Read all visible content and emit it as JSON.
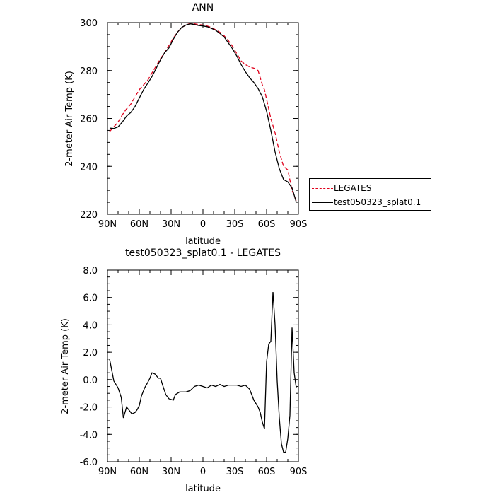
{
  "chart_data": [
    {
      "type": "line",
      "title": "ANN",
      "xlabel": "latitude",
      "ylabel": "2-meter Air Temp (K)",
      "x_ticks": [
        "90N",
        "60N",
        "30N",
        "0",
        "30S",
        "60S",
        "90S"
      ],
      "y_ticks": [
        "220",
        "240",
        "260",
        "280",
        "300"
      ],
      "xlim": [
        -90,
        90
      ],
      "ylim": [
        220,
        300
      ],
      "legend_position": "right",
      "series": [
        {
          "name": "LEGATES",
          "color": "#e0001b",
          "dash": "dashed",
          "x": [
            -88,
            -84,
            -80,
            -76,
            -72,
            -68,
            -64,
            -60,
            -56,
            -52,
            -48,
            -44,
            -40,
            -36,
            -32,
            -28,
            -24,
            -20,
            -16,
            -12,
            -8,
            -4,
            0,
            4,
            8,
            12,
            16,
            20,
            24,
            28,
            32,
            36,
            40,
            44,
            48,
            52,
            56,
            58,
            60,
            64,
            68,
            72,
            76,
            80,
            84,
            88
          ],
          "y": [
            254.5,
            256.5,
            258.5,
            261.5,
            264,
            266,
            269,
            272,
            274,
            276,
            279,
            282,
            285,
            287.5,
            290.5,
            293.5,
            296,
            298,
            299,
            299.7,
            299.5,
            299.2,
            299,
            298.6,
            298,
            297,
            296,
            294.5,
            292.5,
            290,
            287,
            284,
            282.5,
            281.5,
            281,
            280,
            274,
            272,
            268,
            260,
            254,
            246,
            240,
            238.5,
            230,
            225.5
          ]
        },
        {
          "name": "test050323_splat0.1",
          "color": "#000000",
          "dash": "solid",
          "x": [
            -88,
            -84,
            -80,
            -76,
            -72,
            -68,
            -64,
            -60,
            -56,
            -52,
            -48,
            -44,
            -40,
            -36,
            -32,
            -28,
            -24,
            -20,
            -16,
            -12,
            -8,
            -4,
            0,
            4,
            8,
            12,
            16,
            20,
            24,
            28,
            32,
            36,
            40,
            44,
            48,
            52,
            56,
            60,
            64,
            68,
            72,
            76,
            80,
            84,
            88
          ],
          "y": [
            256,
            255.8,
            256.5,
            258.5,
            261,
            262.5,
            265,
            268.5,
            272,
            274.7,
            277.5,
            281,
            284.5,
            287.5,
            289.5,
            293,
            296,
            298,
            299,
            299.5,
            299.2,
            298.8,
            298.6,
            298.3,
            297.6,
            296.8,
            295.5,
            294,
            291.5,
            289,
            286,
            282.5,
            279.5,
            277,
            275,
            272.5,
            269,
            263,
            255,
            246,
            239,
            234.5,
            233.5,
            231,
            225
          ]
        }
      ]
    },
    {
      "type": "line",
      "title": "test050323_splat0.1 - LEGATES",
      "xlabel": "latitude",
      "ylabel": "2-meter Air Temp (K)",
      "x_ticks": [
        "90N",
        "60N",
        "30N",
        "0",
        "30S",
        "60S",
        "90S"
      ],
      "y_ticks": [
        "-6.0",
        "-4.0",
        "-2.0",
        "0.0",
        "2.0",
        "4.0",
        "6.0",
        "8.0"
      ],
      "xlim": [
        -90,
        90
      ],
      "ylim": [
        -6,
        8
      ],
      "series": [
        {
          "color": "#000000",
          "dash": "solid",
          "x": [
            -88,
            -84,
            -80,
            -77,
            -75,
            -72,
            -70,
            -67,
            -64,
            -62,
            -60,
            -58,
            -55,
            -52,
            -50,
            -48,
            -45,
            -42,
            -40,
            -38,
            -35,
            -32,
            -30,
            -28,
            -26,
            -22,
            -20,
            -16,
            -12,
            -8,
            -4,
            0,
            4,
            8,
            12,
            16,
            20,
            24,
            28,
            32,
            36,
            40,
            44,
            48,
            52,
            54,
            56,
            58,
            60,
            62,
            64,
            66,
            68,
            70,
            72,
            74,
            76,
            78,
            80,
            82,
            84,
            86,
            88
          ],
          "y": [
            1.5,
            -0.1,
            -0.6,
            -1.3,
            -2.8,
            -2.0,
            -2.2,
            -2.5,
            -2.4,
            -2.2,
            -1.9,
            -1.2,
            -0.6,
            -0.2,
            0.1,
            0.5,
            0.4,
            0.1,
            0.1,
            -0.4,
            -1.1,
            -1.4,
            -1.45,
            -1.5,
            -1.1,
            -0.9,
            -0.9,
            -0.9,
            -0.8,
            -0.5,
            -0.4,
            -0.5,
            -0.6,
            -0.4,
            -0.5,
            -0.35,
            -0.5,
            -0.4,
            -0.4,
            -0.4,
            -0.5,
            -0.4,
            -0.7,
            -1.5,
            -2.0,
            -2.4,
            -3.1,
            -3.6,
            1.3,
            2.6,
            2.8,
            6.4,
            4.0,
            -0.1,
            -2.8,
            -4.7,
            -5.3,
            -5.3,
            -4.3,
            -2.6,
            3.8,
            0.5,
            -0.6
          ]
        }
      ]
    }
  ]
}
